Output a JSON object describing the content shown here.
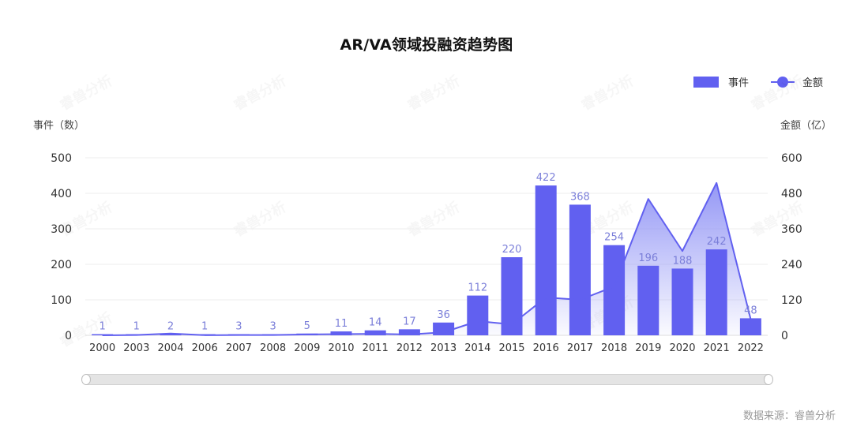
{
  "title": "AR/VA领域投融资趋势图",
  "legend": {
    "bar_label": "事件",
    "line_label": "金额"
  },
  "axes": {
    "left_name": "事件（数）",
    "right_name": "金额（亿）",
    "left_ticks": [
      "0",
      "100",
      "200",
      "300",
      "400",
      "500"
    ],
    "right_ticks": [
      "0",
      "120",
      "240",
      "360",
      "480",
      "600"
    ]
  },
  "source": "数据来源：睿兽分析",
  "watermark": "睿兽分析",
  "colors": {
    "bar": "#6160f0",
    "line": "#6160f0",
    "area_top": "#8f92f5",
    "label": "#7b7fd9",
    "grid": "#eeeeee",
    "axis_text": "#333333"
  },
  "chart_data": {
    "type": "bar+line",
    "title": "AR/VA领域投融资趋势图",
    "xlabel": "",
    "categories": [
      "2000",
      "2003",
      "2004",
      "2006",
      "2007",
      "2008",
      "2009",
      "2010",
      "2011",
      "2012",
      "2013",
      "2014",
      "2015",
      "2016",
      "2017",
      "2018",
      "2019",
      "2020",
      "2021",
      "2022"
    ],
    "series": [
      {
        "name": "事件",
        "type": "bar",
        "axis": "left",
        "values": [
          1,
          1,
          2,
          1,
          3,
          3,
          5,
          11,
          14,
          17,
          36,
          112,
          220,
          422,
          368,
          254,
          196,
          188,
          242,
          48
        ]
      },
      {
        "name": "金额",
        "type": "line",
        "axis": "right",
        "area": true,
        "values": [
          0,
          1,
          6,
          0.5,
          1,
          1,
          3,
          4,
          5,
          3,
          10,
          48,
          37,
          128,
          120,
          165,
          461,
          285,
          515,
          55
        ]
      }
    ],
    "left_axis": {
      "name": "事件（数）",
      "ylim": [
        0,
        500
      ],
      "ticks": [
        0,
        100,
        200,
        300,
        400,
        500
      ]
    },
    "right_axis": {
      "name": "金额（亿）",
      "ylim": [
        0,
        600
      ],
      "ticks": [
        0,
        120,
        240,
        360,
        480,
        600
      ]
    },
    "grid": true,
    "legend_position": "top-right",
    "data_labels": "bar values shown above bars",
    "dataZoom": "full range slider"
  }
}
